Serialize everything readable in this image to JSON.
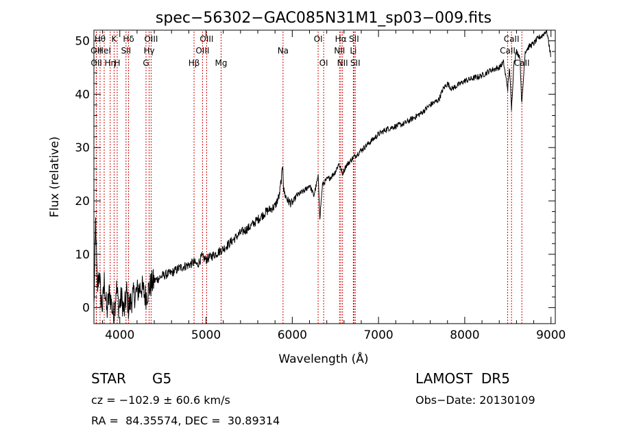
{
  "chart_data": {
    "type": "line",
    "title": "spec−56302−GAC085N31M1_sp03−009.fits",
    "xlabel": "Wavelength (Å)",
    "ylabel": "Flux (relative)",
    "xlim": [
      3700,
      9050
    ],
    "ylim": [
      -3,
      52
    ],
    "x_ticks": [
      4000,
      5000,
      6000,
      7000,
      8000,
      9000
    ],
    "y_ticks": [
      0,
      10,
      20,
      30,
      40,
      50
    ],
    "grid": false,
    "legend": "none",
    "line_color": "#000000",
    "marker_color": "#cc0000",
    "series": [
      {
        "x": [
          3700,
          3720,
          3740,
          3760,
          3780,
          3800,
          3820,
          3850,
          3880,
          3900,
          3930,
          3960,
          3990,
          4020,
          4050,
          4080,
          4100,
          4150,
          4200,
          4250,
          4300,
          4350,
          4400,
          4500,
          4600,
          4700,
          4800,
          4860,
          4900,
          4950,
          5000,
          5050,
          5100,
          5200,
          5300,
          5400,
          5500,
          5600,
          5700,
          5800,
          5850,
          5880,
          5890,
          5900,
          5920,
          5950,
          6000,
          6050,
          6100,
          6150,
          6200,
          6250,
          6300,
          6320,
          6350,
          6400,
          6450,
          6500,
          6540,
          6563,
          6580,
          6620,
          6700,
          6800,
          6900,
          7000,
          7100,
          7200,
          7300,
          7400,
          7500,
          7600,
          7700,
          7750,
          7800,
          7850,
          7900,
          8000,
          8100,
          8200,
          8300,
          8400,
          8450,
          8498,
          8520,
          8542,
          8570,
          8600,
          8640,
          8662,
          8700,
          8750,
          8800,
          8850,
          8900,
          8950,
          9000
        ],
        "y": [
          0,
          16,
          3,
          7,
          2,
          0,
          5,
          -1,
          3,
          1,
          -2,
          4,
          0,
          2,
          -1,
          3,
          0,
          2,
          3,
          4,
          2,
          4,
          5,
          6,
          6.5,
          7.5,
          8,
          8.5,
          8,
          9.5,
          9,
          9.5,
          10,
          11,
          12.5,
          14,
          15,
          16.5,
          18,
          19,
          21,
          25,
          27,
          22,
          21,
          20,
          19.5,
          21,
          21.5,
          22,
          23,
          21,
          24.5,
          17,
          23,
          24,
          24.5,
          25.5,
          27,
          26,
          25,
          26.5,
          28,
          29.5,
          31,
          32.5,
          33.5,
          34,
          34.5,
          35.5,
          36.5,
          38,
          39,
          41,
          42,
          41,
          41.5,
          42.5,
          43,
          43.5,
          44.5,
          45,
          46,
          41,
          45,
          37,
          46,
          48,
          47,
          38,
          48,
          49,
          49.5,
          50.5,
          51,
          52,
          47
        ]
      }
    ],
    "lines": [
      {
        "x": 3727,
        "label": "OII",
        "row": 1
      },
      {
        "x": 3729,
        "label": "OII",
        "row": 2
      },
      {
        "x": 3771,
        "label": "Hθ",
        "row": 0
      },
      {
        "x": 3819,
        "label": "HeI",
        "row": 1
      },
      {
        "x": 3889,
        "label": "Hη",
        "row": 2
      },
      {
        "x": 3934,
        "label": "K",
        "row": 0
      },
      {
        "x": 3970,
        "label": "H",
        "row": 2
      },
      {
        "x": 4072,
        "label": "SII",
        "row": 1
      },
      {
        "x": 4102,
        "label": "Hδ",
        "row": 0
      },
      {
        "x": 4304,
        "label": "G",
        "row": 2
      },
      {
        "x": 4340,
        "label": "Hγ",
        "row": 1
      },
      {
        "x": 4363,
        "label": "OIII",
        "row": 0
      },
      {
        "x": 4861,
        "label": "Hβ",
        "row": 2
      },
      {
        "x": 4959,
        "label": "OIII",
        "row": 1
      },
      {
        "x": 5007,
        "label": "OIII",
        "row": 0
      },
      {
        "x": 5175,
        "label": "Mg",
        "row": 2
      },
      {
        "x": 5893,
        "label": "Na",
        "row": 1
      },
      {
        "x": 6300,
        "label": "OI",
        "row": 0
      },
      {
        "x": 6364,
        "label": "OI",
        "row": 2
      },
      {
        "x": 6548,
        "label": "NII",
        "row": 1
      },
      {
        "x": 6563,
        "label": "Hα",
        "row": 0
      },
      {
        "x": 6583,
        "label": "NII",
        "row": 2
      },
      {
        "x": 6708,
        "label": "Li",
        "row": 1
      },
      {
        "x": 6716,
        "label": "SII",
        "row": 0
      },
      {
        "x": 6731,
        "label": "SII",
        "row": 2
      },
      {
        "x": 8498,
        "label": "CaII",
        "row": 1
      },
      {
        "x": 8542,
        "label": "CaII",
        "row": 0
      },
      {
        "x": 8662,
        "label": "CaII",
        "row": 2
      }
    ]
  },
  "info": {
    "class_label": "STAR",
    "subclass_label": "G5",
    "survey_label": "LAMOST  DR5",
    "velocity_text": "cz = −102.9 ± 60.6 km/s",
    "obs_date_text": "Obs−Date: 20130109",
    "coords_text": "RA =  84.35574, DEC =  30.89314"
  }
}
